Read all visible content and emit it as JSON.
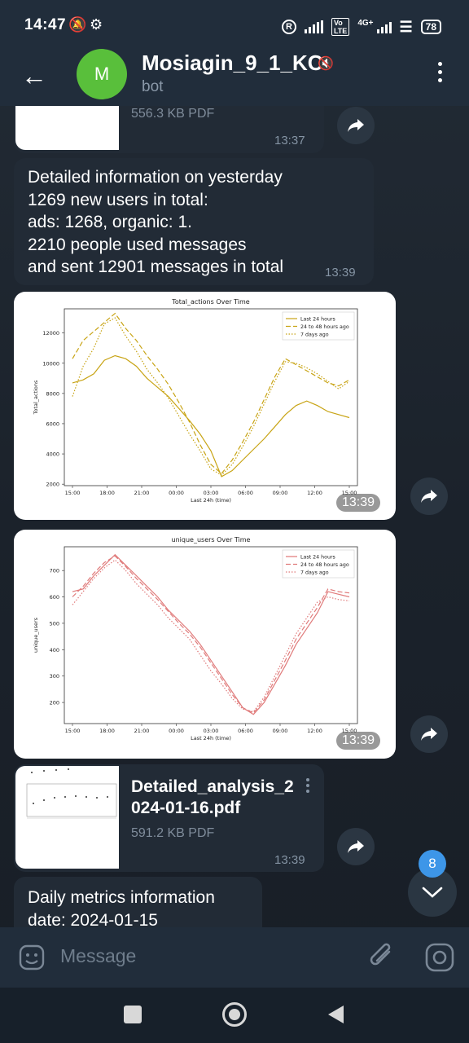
{
  "status_bar": {
    "time": "14:47",
    "network": "4G+",
    "battery": "78"
  },
  "header": {
    "avatar_letter": "M",
    "title": "Mosiagin_9_1_KC",
    "subtitle": "bot"
  },
  "messages": {
    "file_top": {
      "size": "556.3 KB PDF",
      "time": "13:37"
    },
    "text1": {
      "lines": [
        "Detailed information on yesterday",
        "1269 new users in total:",
        "ads: 1268, organic: 1.",
        "2210 people used messages",
        "and sent 12901 messages in total"
      ],
      "time": "13:39"
    },
    "chart1_time": "13:39",
    "chart2_time": "13:39",
    "file2": {
      "name_line1": "Detailed_analysis_2",
      "name_line2": "024-01-16.pdf",
      "size": "591.2 KB PDF",
      "time": "13:39"
    },
    "text2": {
      "line1": "Daily metrics information",
      "line2": "date: 2024-01-15"
    }
  },
  "scroll_badge": "8",
  "composer": {
    "placeholder": "Message"
  },
  "colors": {
    "accent": "#3d96e8",
    "avatar": "#59bf3b",
    "chart1": "#c8a415",
    "chart2": "#e07b7b"
  },
  "chart_data": [
    {
      "type": "line",
      "title": "Total_actions Over Time",
      "xlabel": "Last 24h (time)",
      "ylabel": "Total_actions",
      "x_ticks": [
        "15:00",
        "18:00",
        "21:00",
        "00:00",
        "03:00",
        "06:00",
        "09:00",
        "12:00",
        "15:00"
      ],
      "y_ticks": [
        2000,
        4000,
        6000,
        8000,
        10000,
        12000
      ],
      "ylim": [
        1900,
        13600
      ],
      "legend_position": "top-right",
      "series": [
        {
          "name": "Last 24 hours",
          "style": "solid",
          "values": [
            8700,
            8900,
            9300,
            10200,
            10500,
            10300,
            9800,
            9000,
            8400,
            7800,
            7000,
            6200,
            5300,
            4200,
            2500,
            2900,
            3600,
            4300,
            5000,
            5800,
            6600,
            7200,
            7500,
            7200,
            6800,
            6600,
            6400
          ]
        },
        {
          "name": "24 to 48 hours ago",
          "style": "dashed",
          "values": [
            10300,
            11500,
            12100,
            12700,
            13300,
            12300,
            11500,
            10500,
            9600,
            8600,
            7400,
            6100,
            4600,
            3300,
            2700,
            3600,
            4800,
            6100,
            7600,
            9100,
            10300,
            9900,
            9500,
            9100,
            8700,
            8500,
            8900
          ]
        },
        {
          "name": "7 days ago",
          "style": "dotted",
          "values": [
            7800,
            9800,
            11000,
            12600,
            13000,
            11800,
            10800,
            9600,
            8700,
            7700,
            6500,
            5300,
            4200,
            3000,
            2600,
            3300,
            4500,
            5800,
            7300,
            8800,
            10100,
            10000,
            9700,
            9300,
            8800,
            8300,
            8800
          ]
        }
      ]
    },
    {
      "type": "line",
      "title": "unique_users Over Time",
      "xlabel": "Last 24h (time)",
      "ylabel": "unique_users",
      "x_ticks": [
        "15:00",
        "18:00",
        "21:00",
        "00:00",
        "03:00",
        "06:00",
        "09:00",
        "12:00",
        "15:00"
      ],
      "y_ticks": [
        200,
        300,
        400,
        500,
        600,
        700
      ],
      "ylim": [
        120,
        790
      ],
      "legend_position": "top-right",
      "series": [
        {
          "name": "Last 24 hours",
          "style": "solid",
          "values": [
            620,
            630,
            680,
            720,
            760,
            720,
            680,
            640,
            600,
            550,
            510,
            470,
            420,
            360,
            300,
            240,
            180,
            155,
            200,
            270,
            340,
            420,
            480,
            540,
            620,
            610,
            600
          ]
        },
        {
          "name": "24 to 48 hours ago",
          "style": "dashed",
          "values": [
            600,
            640,
            690,
            730,
            755,
            715,
            670,
            630,
            590,
            545,
            500,
            460,
            410,
            350,
            290,
            230,
            180,
            160,
            210,
            285,
            360,
            440,
            500,
            560,
            630,
            620,
            615
          ]
        },
        {
          "name": "7 days ago",
          "style": "dotted",
          "values": [
            570,
            620,
            670,
            710,
            740,
            700,
            650,
            610,
            570,
            520,
            480,
            440,
            380,
            320,
            270,
            215,
            175,
            165,
            220,
            300,
            380,
            460,
            520,
            580,
            600,
            590,
            585
          ]
        }
      ]
    }
  ]
}
